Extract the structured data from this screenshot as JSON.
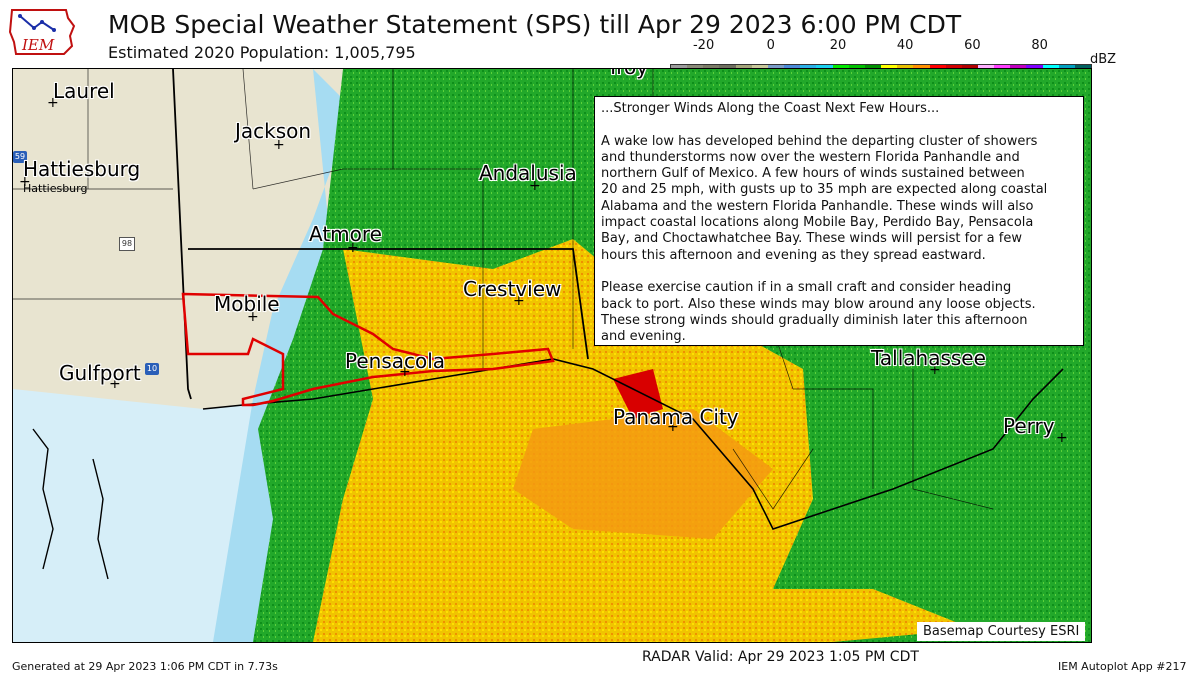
{
  "header": {
    "title": "MOB Special Weather Statement (SPS) till Apr 29 2023 6:00 PM CDT",
    "subtitle": "Estimated 2020 Population: 1,005,795",
    "logo_text": "IEM"
  },
  "colorbar": {
    "ticks": [
      "-20",
      "0",
      "20",
      "40",
      "60",
      "80"
    ],
    "tick_values": [
      -20,
      0,
      20,
      40,
      60,
      80
    ],
    "range": [
      -30,
      95
    ],
    "unit": "dBZ",
    "colors": [
      "#9c9c9c",
      "#8a8a78",
      "#7b7b66",
      "#6e6e5e",
      "#a4a47a",
      "#c8c89a",
      "#7a9cc8",
      "#4a8ad8",
      "#2ab0e8",
      "#1ad0f0",
      "#00e800",
      "#00c000",
      "#009000",
      "#ffff00",
      "#e8c000",
      "#ff9000",
      "#ff0000",
      "#d00000",
      "#b00000",
      "#ffb0ff",
      "#ff40ff",
      "#c000c0",
      "#8000ff",
      "#00ffff",
      "#00a0c0",
      "#006060"
    ]
  },
  "cities": [
    {
      "name": "Laurel",
      "size": "large"
    },
    {
      "name": "Jackson",
      "size": "large"
    },
    {
      "name": "Hattiesburg",
      "size": "large"
    },
    {
      "name": "Hattiesburg",
      "size": "small"
    },
    {
      "name": "Andalusia",
      "size": "large"
    },
    {
      "name": "Atmore",
      "size": "large"
    },
    {
      "name": "Mobile",
      "size": "large"
    },
    {
      "name": "Crestview",
      "size": "large"
    },
    {
      "name": "Pensacola",
      "size": "large"
    },
    {
      "name": "Gulfport",
      "size": "large"
    },
    {
      "name": "Tallahassee",
      "size": "large"
    },
    {
      "name": "Panama City",
      "size": "large"
    },
    {
      "name": "Perry",
      "size": "large"
    },
    {
      "name": "Troy",
      "size": "large"
    }
  ],
  "highway_shields": [
    "59",
    "98",
    "10"
  ],
  "statement": "...Stronger Winds Along the Coast Next Few Hours...\n\nA wake low has developed behind the departing cluster of showers\nand thunderstorms now over the western Florida Panhandle and\nnorthern Gulf of Mexico. A few hours of winds sustained between\n20 and 25 mph, with gusts up to 35 mph are expected along coastal\nAlabama and the western Florida Panhandle. These winds will also\nimpact coastal locations along Mobile Bay, Perdido Bay, Pensacola\nBay, and Choctawhatchee Bay. These winds will persist for a few\nhours this afternoon and evening as they spread eastward.\n\nPlease exercise caution if in a small craft and consider heading\nback to port. Also these winds may blow around any loose objects.\nThese strong winds should gradually diminish later this afternoon\nand evening.",
  "footer": {
    "basemap_credit": "Basemap Courtesy ESRI",
    "generated": "Generated at 29 Apr 2023 1:06 PM CDT in 7.73s",
    "radar_valid": "RADAR Valid: Apr 29 2023 1:05 PM CDT",
    "app": "IEM Autoplot App #217"
  },
  "colors": {
    "warning_outline": "#e00000",
    "land": "#e8e4d0",
    "water": "#d6eef8"
  }
}
